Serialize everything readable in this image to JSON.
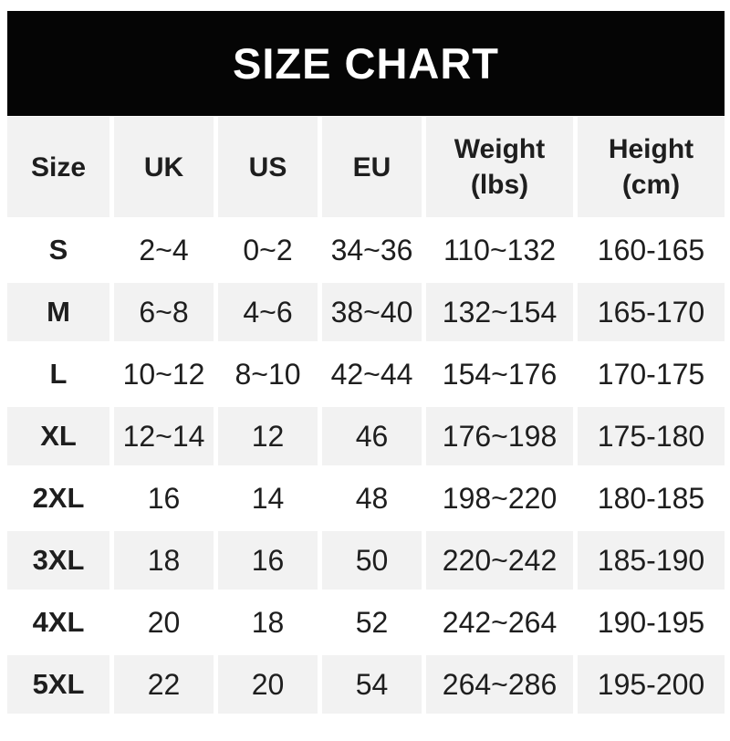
{
  "banner": {
    "title": "SIZE CHART"
  },
  "colors": {
    "banner_bg": "#050505",
    "banner_text": "#ffffff",
    "row_alt_bg": "#f2f2f2",
    "row_bg": "#ffffff",
    "text": "#1e1e1e"
  },
  "table": {
    "headers": [
      {
        "label": "Size"
      },
      {
        "label": "UK"
      },
      {
        "label": "US"
      },
      {
        "label": "EU"
      },
      {
        "label": "Weight\n(lbs)"
      },
      {
        "label": "Height\n(cm)"
      }
    ],
    "rows": [
      {
        "size": "S",
        "uk": "2~4",
        "us": "0~2",
        "eu": "34~36",
        "weight": "110~132",
        "height": "160-165"
      },
      {
        "size": "M",
        "uk": "6~8",
        "us": "4~6",
        "eu": "38~40",
        "weight": "132~154",
        "height": "165-170"
      },
      {
        "size": "L",
        "uk": "10~12",
        "us": "8~10",
        "eu": "42~44",
        "weight": "154~176",
        "height": "170-175"
      },
      {
        "size": "XL",
        "uk": "12~14",
        "us": "12",
        "eu": "46",
        "weight": "176~198",
        "height": "175-180"
      },
      {
        "size": "2XL",
        "uk": "16",
        "us": "14",
        "eu": "48",
        "weight": "198~220",
        "height": "180-185"
      },
      {
        "size": "3XL",
        "uk": "18",
        "us": "16",
        "eu": "50",
        "weight": "220~242",
        "height": "185-190"
      },
      {
        "size": "4XL",
        "uk": "20",
        "us": "18",
        "eu": "52",
        "weight": "242~264",
        "height": "190-195"
      },
      {
        "size": "5XL",
        "uk": "22",
        "us": "20",
        "eu": "54",
        "weight": "264~286",
        "height": "195-200"
      }
    ]
  },
  "chart_data": {
    "type": "table",
    "title": "SIZE CHART",
    "columns": [
      "Size",
      "UK",
      "US",
      "EU",
      "Weight (lbs)",
      "Height (cm)"
    ],
    "rows": [
      [
        "S",
        "2~4",
        "0~2",
        "34~36",
        "110~132",
        "160-165"
      ],
      [
        "M",
        "6~8",
        "4~6",
        "38~40",
        "132~154",
        "165-170"
      ],
      [
        "L",
        "10~12",
        "8~10",
        "42~44",
        "154~176",
        "170-175"
      ],
      [
        "XL",
        "12~14",
        "12",
        "46",
        "176~198",
        "175-180"
      ],
      [
        "2XL",
        "16",
        "14",
        "48",
        "198~220",
        "180-185"
      ],
      [
        "3XL",
        "18",
        "16",
        "50",
        "220~242",
        "185-190"
      ],
      [
        "4XL",
        "20",
        "18",
        "52",
        "242~264",
        "190-195"
      ],
      [
        "5XL",
        "22",
        "20",
        "54",
        "264~286",
        "195-200"
      ]
    ]
  }
}
